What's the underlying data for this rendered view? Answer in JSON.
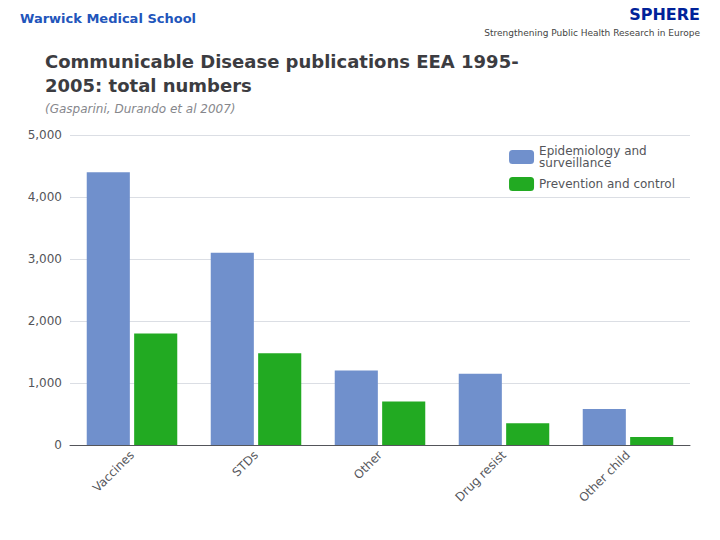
{
  "chart_data": {
    "type": "bar",
    "title": "Communicable Disease publications EEA 1995-\n2005: total numbers",
    "subtitle": "(Gasparini, Durando et al 2007)",
    "annotations": [
      "Warwick Medical School",
      "SPHERE",
      "Strengthening Public Health Research in Europe"
    ],
    "categories": [
      "Vaccines",
      "STDs",
      "Other",
      "Drug resist",
      "Other child"
    ],
    "series": [
      {
        "name": "Epidemiology and\nsurveillance",
        "color": "#7090CC",
        "values": [
          4400,
          3100,
          1200,
          1150,
          580
        ]
      },
      {
        "name": "Prevention and control",
        "color": "#22AA22",
        "values": [
          1800,
          1480,
          700,
          350,
          130
        ]
      }
    ],
    "ylim": [
      0,
      5000
    ],
    "yticks": [
      0,
      1000,
      2000,
      3000,
      4000,
      5000
    ],
    "grid": true,
    "legend": "upper right"
  }
}
